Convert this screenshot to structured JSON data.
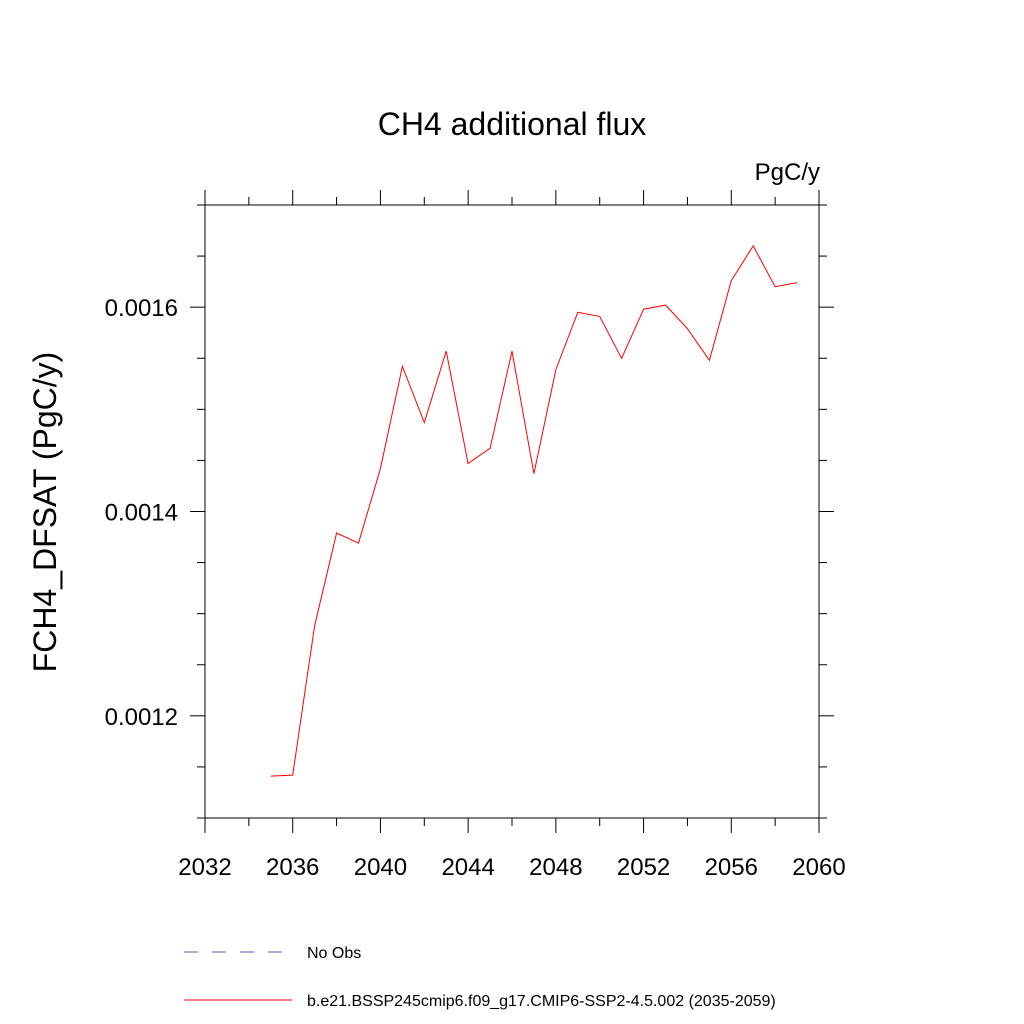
{
  "chart_data": {
    "type": "line",
    "title": "CH4 additional flux",
    "units_label": "PgC/y",
    "ylabel": "FCH4_DFSAT  (PgC/y)",
    "xlabel": "",
    "xlim": [
      2032,
      2060
    ],
    "ylim": [
      0.0011,
      0.0017
    ],
    "x_ticks": [
      "2032",
      "2036",
      "2040",
      "2044",
      "2048",
      "2052",
      "2056",
      "2060"
    ],
    "y_ticks": [
      "0.0012",
      "0.0014",
      "0.0016"
    ],
    "grid": false,
    "legend_position": "bottom",
    "series": [
      {
        "name": "b.e21.BSSP245cmip6.f09_g17.CMIP6-SSP2-4.5.002 (2035-2059)",
        "color": "#ff0000",
        "style": "solid",
        "x": [
          2035,
          2036,
          2037,
          2038,
          2039,
          2040,
          2041,
          2042,
          2043,
          2044,
          2045,
          2046,
          2047,
          2048,
          2049,
          2050,
          2051,
          2052,
          2053,
          2054,
          2055,
          2056,
          2057,
          2058,
          2059
        ],
        "y": [
          0.001141,
          0.001142,
          0.001288,
          0.001379,
          0.001369,
          0.001442,
          0.001542,
          0.001487,
          0.001557,
          0.001447,
          0.001462,
          0.001557,
          0.001437,
          0.001539,
          0.001595,
          0.001591,
          0.00155,
          0.001598,
          0.001602,
          0.001579,
          0.001548,
          0.001626,
          0.00166,
          0.00162,
          0.001624
        ]
      }
    ],
    "legend": [
      {
        "label": "No Obs",
        "color": "#5555cc",
        "style": "dashed"
      },
      {
        "label": "b.e21.BSSP245cmip6.f09_g17.CMIP6-SSP2-4.5.002 (2035-2059)",
        "color": "#ff0000",
        "style": "solid"
      }
    ]
  }
}
